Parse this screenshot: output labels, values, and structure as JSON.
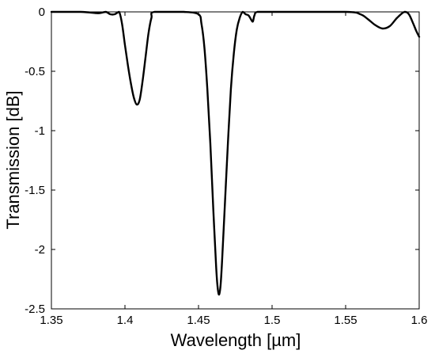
{
  "chart_data": {
    "type": "line",
    "title": "",
    "xlabel": "Wavelength [µm]",
    "ylabel": "Transmission [dB]",
    "xlim": [
      1.35,
      1.6
    ],
    "ylim": [
      -2.5,
      0
    ],
    "grid": false,
    "legend": "none",
    "line_color": "#000000",
    "xticks": [
      1.35,
      1.4,
      1.45,
      1.5,
      1.55,
      1.6
    ],
    "xtick_labels": [
      "1.35",
      "1.4",
      "1.45",
      "1.5",
      "1.55",
      "1.6"
    ],
    "yticks": [
      0,
      -0.5,
      -1,
      -1.5,
      -2,
      -2.5
    ],
    "ytick_labels": [
      "0",
      "-0.5",
      "-1",
      "-1.5",
      "-2",
      "-2.5"
    ],
    "series": [
      {
        "x": [
          1.35,
          1.37,
          1.38,
          1.383,
          1.387,
          1.39,
          1.393,
          1.396,
          1.398,
          1.4,
          1.402,
          1.404,
          1.406,
          1.408,
          1.41,
          1.412,
          1.414,
          1.416,
          1.418,
          1.42,
          1.44,
          1.45,
          1.452,
          1.454,
          1.456,
          1.458,
          1.46,
          1.462,
          1.463,
          1.464,
          1.465,
          1.466,
          1.468,
          1.47,
          1.472,
          1.474,
          1.476,
          1.478,
          1.48,
          1.482,
          1.484,
          1.486,
          1.487,
          1.488,
          1.49,
          1.5,
          1.55,
          1.56,
          1.565,
          1.57,
          1.575,
          1.58,
          1.585,
          1.59,
          1.593,
          1.596,
          1.598,
          1.6
        ],
        "y": [
          0,
          0,
          -0.01,
          -0.01,
          0,
          -0.02,
          -0.02,
          0,
          -0.1,
          -0.28,
          -0.45,
          -0.6,
          -0.72,
          -0.78,
          -0.74,
          -0.58,
          -0.38,
          -0.18,
          -0.05,
          0,
          0,
          -0.02,
          -0.1,
          -0.3,
          -0.65,
          -1.1,
          -1.65,
          -2.15,
          -2.32,
          -2.38,
          -2.3,
          -2.1,
          -1.6,
          -1.1,
          -0.65,
          -0.35,
          -0.15,
          -0.05,
          0,
          -0.02,
          -0.03,
          -0.07,
          -0.08,
          -0.03,
          0,
          0,
          0,
          -0.02,
          -0.06,
          -0.11,
          -0.14,
          -0.12,
          -0.05,
          0,
          -0.02,
          -0.1,
          -0.16,
          -0.21
        ]
      }
    ]
  }
}
